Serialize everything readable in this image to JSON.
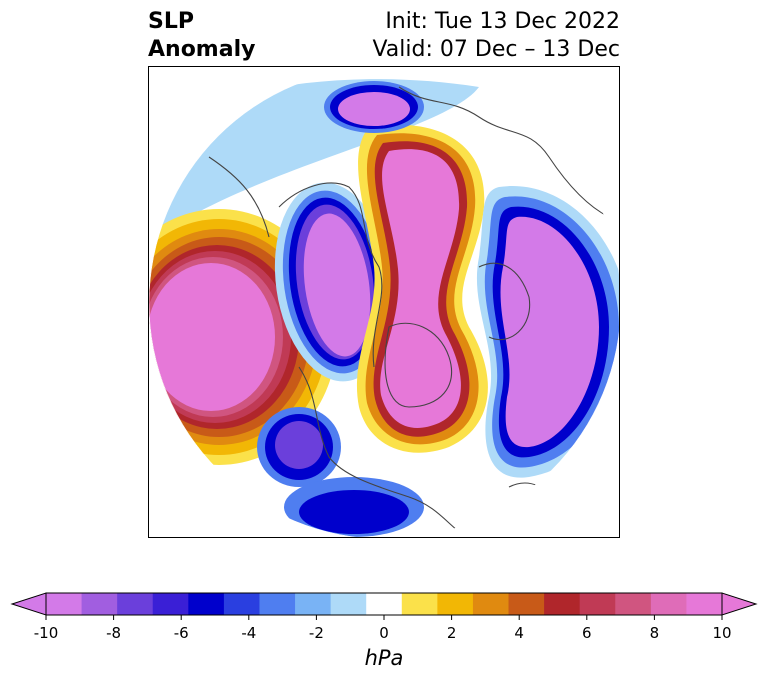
{
  "title": {
    "left_line1": "SLP",
    "left_line2": "Anomaly",
    "right_line1": "Init: Tue 13 Dec 2022",
    "right_line2": "Valid: 07 Dec – 13 Dec"
  },
  "colorbar": {
    "unit": "hPa",
    "ticks": [
      "-10",
      "-8",
      "-6",
      "-4",
      "-2",
      "0",
      "2",
      "4",
      "6",
      "8",
      "10"
    ],
    "colors": [
      "#d37ae8",
      "#a15ee0",
      "#6b3fdb",
      "#3a1fd6",
      "#0000cc",
      "#2a3fe0",
      "#4f7ef0",
      "#79b3f5",
      "#aedaf8",
      "#ffffff",
      "#fbe14a",
      "#f2b705",
      "#e08a10",
      "#c85a18",
      "#b0262b",
      "#c03a55",
      "#d05580",
      "#df6cb8",
      "#e678d8"
    ],
    "extend_low_color": "#d37ae8",
    "extend_high_color": "#e678d8"
  }
}
